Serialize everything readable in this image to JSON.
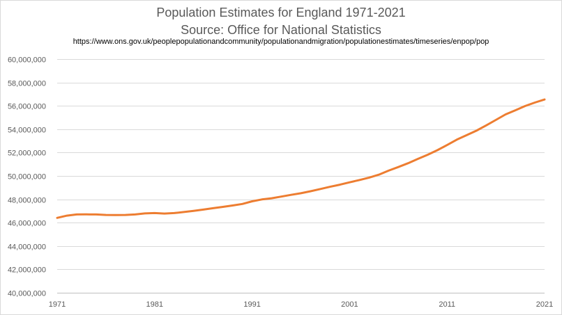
{
  "chart_data": {
    "type": "line",
    "title": "Population Estimates for England 1971-2021",
    "subtitle": "Source: Office for National Statistics",
    "source_url": "https://www.ons.gov.uk/peoplepopulationandcommunity/populationandmigration/populationestimates/timeseries/enpop/pop",
    "xlabel": "",
    "ylabel": "",
    "xlim": [
      1971,
      2021
    ],
    "ylim": [
      40000000,
      60000000
    ],
    "x_ticks": [
      1971,
      1981,
      1991,
      2001,
      2011,
      2021
    ],
    "y_ticks": [
      {
        "value": 40000000,
        "label": "40,000,000"
      },
      {
        "value": 42000000,
        "label": "42,000,000"
      },
      {
        "value": 44000000,
        "label": "44,000,000"
      },
      {
        "value": 46000000,
        "label": "46,000,000"
      },
      {
        "value": 48000000,
        "label": "48,000,000"
      },
      {
        "value": 50000000,
        "label": "50,000,000"
      },
      {
        "value": 52000000,
        "label": "52,000,000"
      },
      {
        "value": 54000000,
        "label": "54,000,000"
      },
      {
        "value": 56000000,
        "label": "56,000,000"
      },
      {
        "value": 58000000,
        "label": "58,000,000"
      },
      {
        "value": 60000000,
        "label": "60,000,000"
      }
    ],
    "grid": "horizontal",
    "legend": "none",
    "series": [
      {
        "color": "#ED7D31",
        "x": [
          1971,
          1972,
          1973,
          1974,
          1975,
          1976,
          1977,
          1978,
          1979,
          1980,
          1981,
          1982,
          1983,
          1984,
          1985,
          1986,
          1987,
          1988,
          1989,
          1990,
          1991,
          1992,
          1993,
          1994,
          1995,
          1996,
          1997,
          1998,
          1999,
          2000,
          2001,
          2002,
          2003,
          2004,
          2005,
          2006,
          2007,
          2008,
          2009,
          2010,
          2011,
          2012,
          2013,
          2014,
          2015,
          2016,
          2017,
          2018,
          2019,
          2020,
          2021
        ],
        "values": [
          46410000,
          46600000,
          46700000,
          46710000,
          46700000,
          46660000,
          46650000,
          46660000,
          46700000,
          46790000,
          46820000,
          46780000,
          46820000,
          46910000,
          47010000,
          47120000,
          47240000,
          47350000,
          47470000,
          47600000,
          47830000,
          47990000,
          48090000,
          48230000,
          48380000,
          48520000,
          48690000,
          48880000,
          49070000,
          49250000,
          49450000,
          49650000,
          49860000,
          50110000,
          50450000,
          50760000,
          51090000,
          51460000,
          51810000,
          52200000,
          52640000,
          53110000,
          53490000,
          53870000,
          54320000,
          54790000,
          55270000,
          55620000,
          55980000,
          56280000,
          56540000
        ]
      }
    ]
  }
}
